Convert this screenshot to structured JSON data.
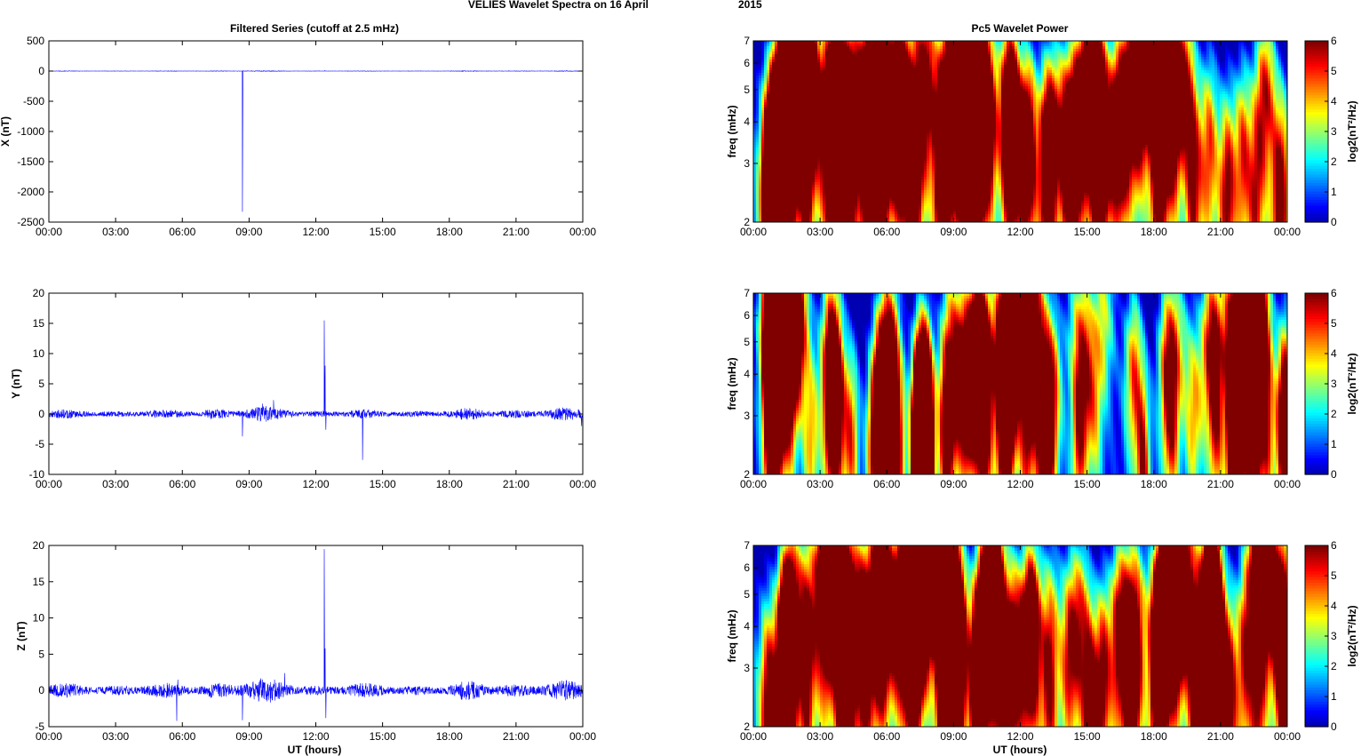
{
  "figure": {
    "suptitle": "VELIES Wavelet Spectra on 16 April",
    "year": "2015"
  },
  "chart_data": [
    {
      "type": "line",
      "id": "x-series",
      "title": "Filtered Series (cutoff at 2.5 mHz)",
      "ylabel": "X (nT)",
      "xlabel": "",
      "xlim": [
        0,
        24
      ],
      "ylim": [
        -2500,
        500
      ],
      "xticklabels": [
        "00:00",
        "03:00",
        "06:00",
        "09:00",
        "12:00",
        "15:00",
        "18:00",
        "21:00",
        "00:00"
      ],
      "yticks": [
        500,
        0,
        -500,
        -1000,
        -1500,
        -2000,
        -2500
      ],
      "series_color": "#0000ff",
      "noise_amplitude": 3,
      "spikes": [
        [
          8.7,
          -2330
        ],
        [
          8.72,
          10
        ],
        [
          12.4,
          8
        ]
      ]
    },
    {
      "type": "line",
      "id": "y-series",
      "title": "",
      "ylabel": "Y (nT)",
      "xlabel": "",
      "xlim": [
        0,
        24
      ],
      "ylim": [
        -10,
        20
      ],
      "xticklabels": [
        "00:00",
        "03:00",
        "06:00",
        "09:00",
        "12:00",
        "15:00",
        "18:00",
        "21:00",
        "00:00"
      ],
      "yticks": [
        20,
        15,
        10,
        5,
        0,
        -5,
        -10
      ],
      "series_color": "#0000ff",
      "noise_amplitude": 0.6,
      "spikes": [
        [
          8.7,
          -3.7
        ],
        [
          12.38,
          15.5
        ],
        [
          12.42,
          8
        ],
        [
          12.45,
          -2.6
        ],
        [
          14.1,
          -7.6
        ],
        [
          10.1,
          2.3
        ],
        [
          9.6,
          1.7
        ],
        [
          23.95,
          -2
        ]
      ]
    },
    {
      "type": "line",
      "id": "z-series",
      "title": "",
      "ylabel": "Z (nT)",
      "xlabel": "UT (hours)",
      "xlim": [
        0,
        24
      ],
      "ylim": [
        -5,
        20
      ],
      "xticklabels": [
        "00:00",
        "03:00",
        "06:00",
        "09:00",
        "12:00",
        "15:00",
        "18:00",
        "21:00",
        "00:00"
      ],
      "yticks": [
        20,
        15,
        10,
        5,
        0,
        -5
      ],
      "series_color": "#0000ff",
      "noise_amplitude": 0.8,
      "spikes": [
        [
          5.75,
          -4.2
        ],
        [
          5.8,
          1.5
        ],
        [
          8.7,
          -4.1
        ],
        [
          12.38,
          19.5
        ],
        [
          12.42,
          5.8
        ],
        [
          12.45,
          -3.8
        ],
        [
          10.6,
          2.4
        ]
      ]
    },
    {
      "type": "heatmap",
      "id": "x-wavelet",
      "title": "Pc5 Wavelet Power",
      "ylabel": "freq (mHz)",
      "xlabel": "",
      "xlim": [
        0,
        24
      ],
      "ylim": [
        2,
        7
      ],
      "yscale": "log",
      "xticklabels": [
        "00:00",
        "03:00",
        "06:00",
        "09:00",
        "12:00",
        "15:00",
        "18:00",
        "21:00",
        "00:00"
      ],
      "yticks": [
        2,
        3,
        4,
        5,
        6,
        7
      ],
      "colormap": "jet",
      "clim": [
        0,
        6
      ],
      "colorbar_label": "log2(nT²/Hz)",
      "colorbar_ticks": [
        0,
        1,
        2,
        3,
        4,
        5,
        6
      ],
      "seed": 11,
      "baseline": 2.6,
      "blobs": [
        [
          0.6,
          2.4,
          1.8
        ],
        [
          1.4,
          3.0,
          1.6
        ],
        [
          2.4,
          2.6,
          1.7
        ],
        [
          3.2,
          3.6,
          1.4
        ],
        [
          4.1,
          2.8,
          1.8
        ],
        [
          5.0,
          2.5,
          1.6
        ],
        [
          5.6,
          3.4,
          1.8
        ],
        [
          6.4,
          4.2,
          1.4
        ],
        [
          7.1,
          3.0,
          1.7
        ],
        [
          8.5,
          2.5,
          3.2
        ],
        [
          9.2,
          3.5,
          2.4
        ],
        [
          10.0,
          2.8,
          2.0
        ],
        [
          10.6,
          4.0,
          1.6
        ],
        [
          11.6,
          3.0,
          2.2
        ],
        [
          12.4,
          3.6,
          1.8
        ],
        [
          13.2,
          2.6,
          1.8
        ],
        [
          14.1,
          3.4,
          1.8
        ],
        [
          14.6,
          4.3,
          1.8
        ],
        [
          15.6,
          2.8,
          2.2
        ],
        [
          16.4,
          3.4,
          1.6
        ],
        [
          17.2,
          4.0,
          1.4
        ],
        [
          18.2,
          2.6,
          1.6
        ],
        [
          18.8,
          3.6,
          1.6
        ],
        [
          19.8,
          2.6,
          2.0
        ],
        [
          20.5,
          3.4,
          1.8
        ],
        [
          21.3,
          2.5,
          2.2
        ],
        [
          22.0,
          3.2,
          1.8
        ],
        [
          22.6,
          2.3,
          1.6
        ]
      ]
    },
    {
      "type": "heatmap",
      "id": "y-wavelet",
      "title": "",
      "ylabel": "freq (mHz)",
      "xlabel": "",
      "xlim": [
        0,
        24
      ],
      "ylim": [
        2,
        7
      ],
      "yscale": "log",
      "xticklabels": [
        "00:00",
        "03:00",
        "06:00",
        "09:00",
        "12:00",
        "15:00",
        "18:00",
        "21:00",
        "00:00"
      ],
      "yticks": [
        2,
        3,
        4,
        5,
        6,
        7
      ],
      "colormap": "jet",
      "clim": [
        0,
        6
      ],
      "colorbar_label": "log2(nT²/Hz)",
      "colorbar_ticks": [
        0,
        1,
        2,
        3,
        4,
        5,
        6
      ],
      "seed": 23,
      "baseline": 1.6,
      "blobs": [
        [
          0.8,
          2.3,
          1.8
        ],
        [
          1.6,
          3.0,
          1.4
        ],
        [
          2.6,
          2.5,
          1.6
        ],
        [
          3.6,
          3.2,
          1.5
        ],
        [
          4.4,
          2.6,
          1.9
        ],
        [
          5.4,
          2.3,
          1.6
        ],
        [
          6.2,
          3.3,
          1.6
        ],
        [
          7.4,
          2.4,
          2.0
        ],
        [
          8.7,
          2.6,
          3.0
        ],
        [
          9.6,
          3.2,
          2.0
        ],
        [
          10.4,
          2.4,
          1.8
        ],
        [
          11.4,
          2.8,
          1.8
        ],
        [
          12.3,
          2.4,
          1.8
        ],
        [
          13.0,
          3.2,
          1.4
        ],
        [
          14.6,
          2.4,
          1.6
        ],
        [
          15.4,
          3.0,
          1.0
        ],
        [
          18.8,
          2.6,
          1.4
        ],
        [
          19.8,
          3.0,
          1.6
        ],
        [
          20.8,
          2.6,
          1.6
        ],
        [
          21.6,
          2.4,
          1.6
        ],
        [
          23.1,
          2.6,
          1.8
        ]
      ]
    },
    {
      "type": "heatmap",
      "id": "z-wavelet",
      "title": "",
      "ylabel": "freq (mHz)",
      "xlabel": "UT (hours)",
      "xlim": [
        0,
        24
      ],
      "ylim": [
        2,
        7
      ],
      "yscale": "log",
      "xticklabels": [
        "00:00",
        "03:00",
        "06:00",
        "09:00",
        "12:00",
        "15:00",
        "18:00",
        "21:00",
        "00:00"
      ],
      "yticks": [
        2,
        3,
        4,
        5,
        6,
        7
      ],
      "colormap": "jet",
      "clim": [
        0,
        6
      ],
      "colorbar_label": "log2(nT²/Hz)",
      "colorbar_ticks": [
        0,
        1,
        2,
        3,
        4,
        5,
        6
      ],
      "seed": 37,
      "baseline": 2.7,
      "blobs": [
        [
          0.6,
          2.4,
          1.8
        ],
        [
          1.4,
          3.0,
          1.6
        ],
        [
          2.4,
          2.6,
          1.7
        ],
        [
          3.3,
          3.5,
          1.4
        ],
        [
          4.1,
          2.7,
          1.8
        ],
        [
          5.0,
          2.5,
          1.6
        ],
        [
          5.7,
          3.5,
          1.8
        ],
        [
          6.5,
          4.2,
          1.5
        ],
        [
          7.2,
          3.0,
          1.8
        ],
        [
          8.6,
          2.5,
          3.2
        ],
        [
          9.3,
          3.4,
          2.4
        ],
        [
          10.1,
          2.8,
          2.1
        ],
        [
          10.7,
          4.0,
          1.6
        ],
        [
          11.7,
          3.0,
          2.2
        ],
        [
          12.4,
          3.6,
          1.9
        ],
        [
          13.3,
          2.6,
          1.8
        ],
        [
          14.2,
          3.4,
          1.8
        ],
        [
          14.7,
          4.2,
          1.8
        ],
        [
          15.7,
          2.8,
          2.2
        ],
        [
          16.5,
          3.4,
          1.6
        ],
        [
          17.3,
          4.0,
          1.4
        ],
        [
          18.3,
          2.6,
          1.6
        ],
        [
          18.9,
          3.6,
          1.6
        ],
        [
          19.9,
          2.6,
          2.0
        ],
        [
          20.6,
          3.4,
          1.8
        ],
        [
          21.4,
          2.5,
          2.2
        ],
        [
          22.1,
          3.2,
          1.8
        ],
        [
          22.7,
          2.3,
          1.6
        ]
      ]
    }
  ]
}
